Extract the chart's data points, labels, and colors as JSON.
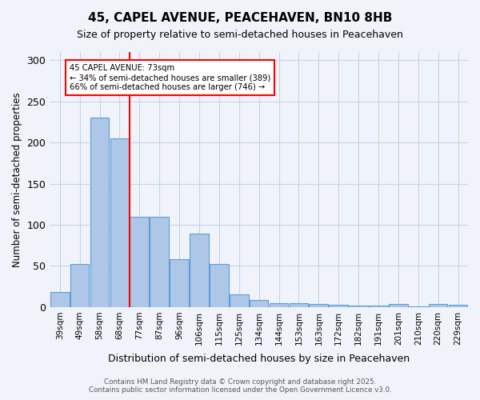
{
  "title": "45, CAPEL AVENUE, PEACEHAVEN, BN10 8HB",
  "subtitle": "Size of property relative to semi-detached houses in Peacehaven",
  "xlabel": "Distribution of semi-detached houses by size in Peacehaven",
  "ylabel": "Number of semi-detached properties",
  "categories": [
    "39sqm",
    "49sqm",
    "58sqm",
    "68sqm",
    "77sqm",
    "87sqm",
    "96sqm",
    "106sqm",
    "115sqm",
    "125sqm",
    "134sqm",
    "144sqm",
    "153sqm",
    "163sqm",
    "172sqm",
    "182sqm",
    "191sqm",
    "201sqm",
    "210sqm",
    "220sqm",
    "229sqm"
  ],
  "values": [
    18,
    52,
    230,
    205,
    110,
    110,
    58,
    89,
    52,
    15,
    9,
    5,
    5,
    4,
    3,
    2,
    2,
    4,
    1,
    4,
    3
  ],
  "bar_color": "#aec6e8",
  "bar_edge_color": "#5a9fd4",
  "red_line_index": 4,
  "annotation_title": "45 CAPEL AVENUE: 73sqm",
  "annotation_line1": "← 34% of semi-detached houses are smaller (389)",
  "annotation_line2": "66% of semi-detached houses are larger (746) →",
  "footer1": "Contains HM Land Registry data © Crown copyright and database right 2025.",
  "footer2": "Contains public sector information licensed under the Open Government Licence v3.0.",
  "ylim": [
    0,
    310
  ],
  "yticks": [
    0,
    50,
    100,
    150,
    200,
    250,
    300
  ],
  "background_color": "#f0f4fa",
  "grid_color": "#c8d4e8"
}
